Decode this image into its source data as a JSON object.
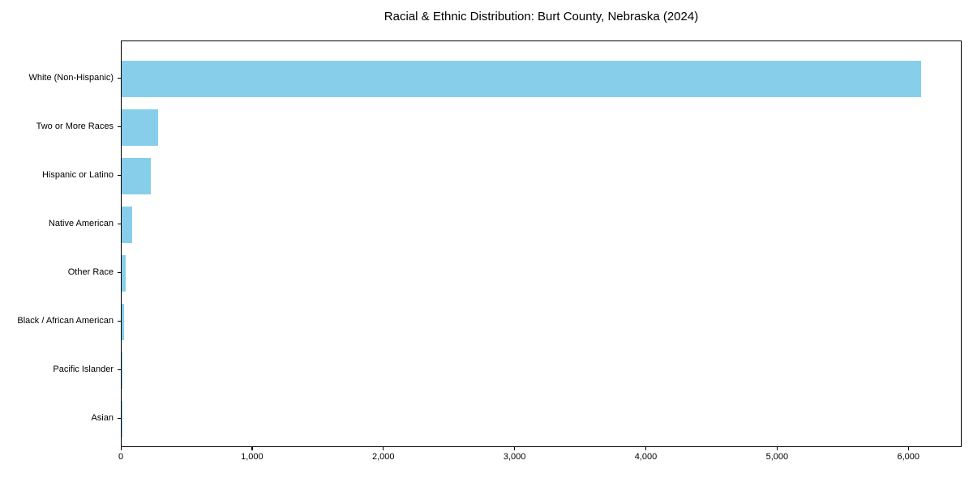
{
  "chart_data": {
    "type": "bar",
    "orientation": "horizontal",
    "title": "Racial & Ethnic Distribution: Burt County, Nebraska (2024)",
    "categories": [
      "White (Non-Hispanic)",
      "Two or More Races",
      "Hispanic or Latino",
      "Native American",
      "Other Race",
      "Black / African American",
      "Pacific Islander",
      "Asian"
    ],
    "values": [
      6090,
      275,
      225,
      78,
      33,
      18,
      5,
      2
    ],
    "xlabel": "",
    "ylabel": "",
    "xlim": [
      0,
      6394
    ],
    "x_ticks": [
      0,
      1000,
      2000,
      3000,
      4000,
      5000,
      6000
    ],
    "x_tick_labels": [
      "0",
      "1,000",
      "2,000",
      "3,000",
      "4,000",
      "5,000",
      "6,000"
    ],
    "bar_color": "#87CEEB",
    "axis_color": "#000000",
    "text_color": "#000000",
    "background": "#FFFFFF",
    "grid": false,
    "legend": null
  }
}
